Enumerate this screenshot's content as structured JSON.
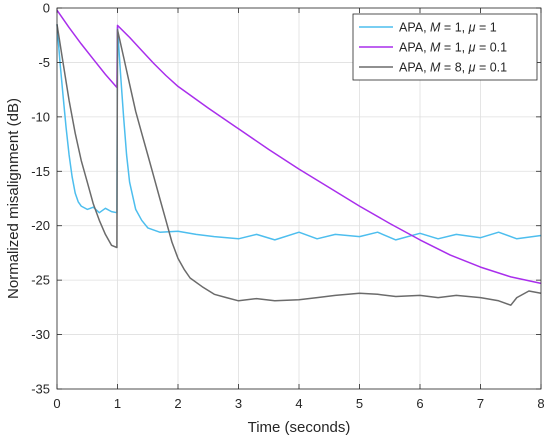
{
  "chart_data": {
    "type": "line",
    "xlabel": "Time (seconds)",
    "ylabel": "Normalized misalignment (dB)",
    "xlim": [
      0,
      8
    ],
    "ylim": [
      -35,
      0
    ],
    "xticks": [
      0,
      1,
      2,
      3,
      4,
      5,
      6,
      7,
      8
    ],
    "yticks": [
      0,
      -5,
      -10,
      -15,
      -20,
      -25,
      -30,
      -35
    ],
    "grid": true,
    "legend_position": "top-right",
    "series": [
      {
        "name": "APA, M = 1, μ = 1",
        "legend": {
          "prefix": "APA, ",
          "M": "1",
          "mu": "1"
        },
        "color": "#4DBEEE",
        "points": [
          [
            0,
            -1.5
          ],
          [
            0.05,
            -5
          ],
          [
            0.1,
            -8
          ],
          [
            0.15,
            -11
          ],
          [
            0.2,
            -13.5
          ],
          [
            0.25,
            -15.5
          ],
          [
            0.3,
            -17
          ],
          [
            0.35,
            -17.8
          ],
          [
            0.4,
            -18.2
          ],
          [
            0.5,
            -18.5
          ],
          [
            0.6,
            -18.3
          ],
          [
            0.7,
            -18.8
          ],
          [
            0.8,
            -18.4
          ],
          [
            0.9,
            -18.7
          ],
          [
            0.99,
            -18.8
          ],
          [
            1.0,
            -1.8
          ],
          [
            1.05,
            -6
          ],
          [
            1.1,
            -10
          ],
          [
            1.15,
            -13.5
          ],
          [
            1.2,
            -16
          ],
          [
            1.3,
            -18.5
          ],
          [
            1.4,
            -19.5
          ],
          [
            1.5,
            -20.2
          ],
          [
            1.7,
            -20.6
          ],
          [
            2.0,
            -20.5
          ],
          [
            2.3,
            -20.8
          ],
          [
            2.6,
            -21.0
          ],
          [
            3.0,
            -21.2
          ],
          [
            3.3,
            -20.8
          ],
          [
            3.6,
            -21.3
          ],
          [
            4.0,
            -20.6
          ],
          [
            4.3,
            -21.2
          ],
          [
            4.6,
            -20.8
          ],
          [
            5.0,
            -21.0
          ],
          [
            5.3,
            -20.6
          ],
          [
            5.6,
            -21.3
          ],
          [
            6.0,
            -20.7
          ],
          [
            6.3,
            -21.2
          ],
          [
            6.6,
            -20.8
          ],
          [
            7.0,
            -21.1
          ],
          [
            7.3,
            -20.6
          ],
          [
            7.6,
            -21.2
          ],
          [
            8.0,
            -20.9
          ]
        ]
      },
      {
        "name": "APA, M = 1, μ = 0.1",
        "legend": {
          "prefix": "APA, ",
          "M": "1",
          "mu": "0.1"
        },
        "color": "#A92EEC",
        "points": [
          [
            0,
            -0.2
          ],
          [
            0.2,
            -1.8
          ],
          [
            0.4,
            -3.3
          ],
          [
            0.6,
            -4.7
          ],
          [
            0.8,
            -6.1
          ],
          [
            0.99,
            -7.3
          ],
          [
            1.0,
            -1.6
          ],
          [
            1.2,
            -2.7
          ],
          [
            1.4,
            -3.9
          ],
          [
            1.6,
            -5.1
          ],
          [
            1.8,
            -6.2
          ],
          [
            2.0,
            -7.2
          ],
          [
            2.5,
            -9.2
          ],
          [
            3.0,
            -11.1
          ],
          [
            3.5,
            -13.0
          ],
          [
            4.0,
            -14.8
          ],
          [
            4.5,
            -16.5
          ],
          [
            5.0,
            -18.2
          ],
          [
            5.5,
            -19.8
          ],
          [
            6.0,
            -21.3
          ],
          [
            6.5,
            -22.7
          ],
          [
            7.0,
            -23.8
          ],
          [
            7.5,
            -24.7
          ],
          [
            8.0,
            -25.3
          ]
        ]
      },
      {
        "name": "APA, M = 8, μ = 0.1",
        "legend": {
          "prefix": "APA, ",
          "M": "8",
          "mu": "0.1"
        },
        "color": "#6B6B6B",
        "points": [
          [
            0,
            -1.5
          ],
          [
            0.1,
            -5
          ],
          [
            0.2,
            -8.5
          ],
          [
            0.3,
            -11.5
          ],
          [
            0.4,
            -14
          ],
          [
            0.5,
            -16
          ],
          [
            0.6,
            -18
          ],
          [
            0.7,
            -19.5
          ],
          [
            0.8,
            -20.8
          ],
          [
            0.9,
            -21.8
          ],
          [
            0.99,
            -22.0
          ],
          [
            1.0,
            -2.0
          ],
          [
            1.1,
            -4.5
          ],
          [
            1.2,
            -7
          ],
          [
            1.3,
            -9.5
          ],
          [
            1.4,
            -11.5
          ],
          [
            1.5,
            -13.5
          ],
          [
            1.6,
            -15.5
          ],
          [
            1.7,
            -17.5
          ],
          [
            1.8,
            -19.5
          ],
          [
            1.9,
            -21.5
          ],
          [
            2.0,
            -23
          ],
          [
            2.1,
            -24
          ],
          [
            2.2,
            -24.8
          ],
          [
            2.4,
            -25.6
          ],
          [
            2.6,
            -26.3
          ],
          [
            2.8,
            -26.6
          ],
          [
            3.0,
            -26.9
          ],
          [
            3.3,
            -26.7
          ],
          [
            3.6,
            -26.9
          ],
          [
            4.0,
            -26.8
          ],
          [
            4.3,
            -26.6
          ],
          [
            4.6,
            -26.4
          ],
          [
            5.0,
            -26.2
          ],
          [
            5.3,
            -26.3
          ],
          [
            5.6,
            -26.5
          ],
          [
            6.0,
            -26.4
          ],
          [
            6.3,
            -26.6
          ],
          [
            6.6,
            -26.4
          ],
          [
            7.0,
            -26.6
          ],
          [
            7.3,
            -26.9
          ],
          [
            7.5,
            -27.3
          ],
          [
            7.6,
            -26.6
          ],
          [
            7.8,
            -26.0
          ],
          [
            8.0,
            -26.2
          ]
        ]
      }
    ]
  }
}
